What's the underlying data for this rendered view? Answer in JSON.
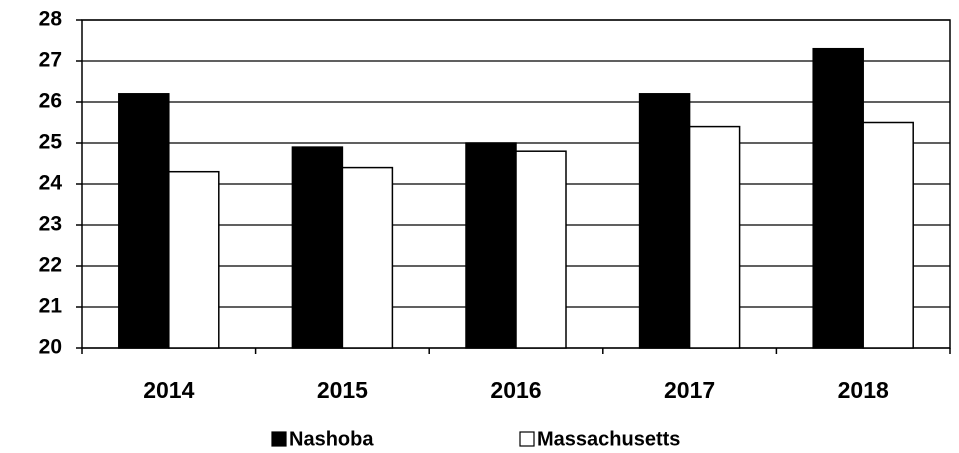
{
  "chart_data": {
    "type": "bar",
    "categories": [
      "2014",
      "2015",
      "2016",
      "2017",
      "2018"
    ],
    "series": [
      {
        "name": "Nashoba",
        "color": "#000000",
        "values": [
          26.2,
          24.9,
          25.0,
          26.2,
          27.3
        ]
      },
      {
        "name": "Massachusetts",
        "color": "#ffffff",
        "values": [
          24.3,
          24.4,
          24.8,
          25.4,
          25.5
        ]
      }
    ],
    "ylim": [
      20,
      28
    ],
    "yticks": [
      20,
      21,
      22,
      23,
      24,
      25,
      26,
      27,
      28
    ],
    "grid": true,
    "legend": "bottom"
  }
}
